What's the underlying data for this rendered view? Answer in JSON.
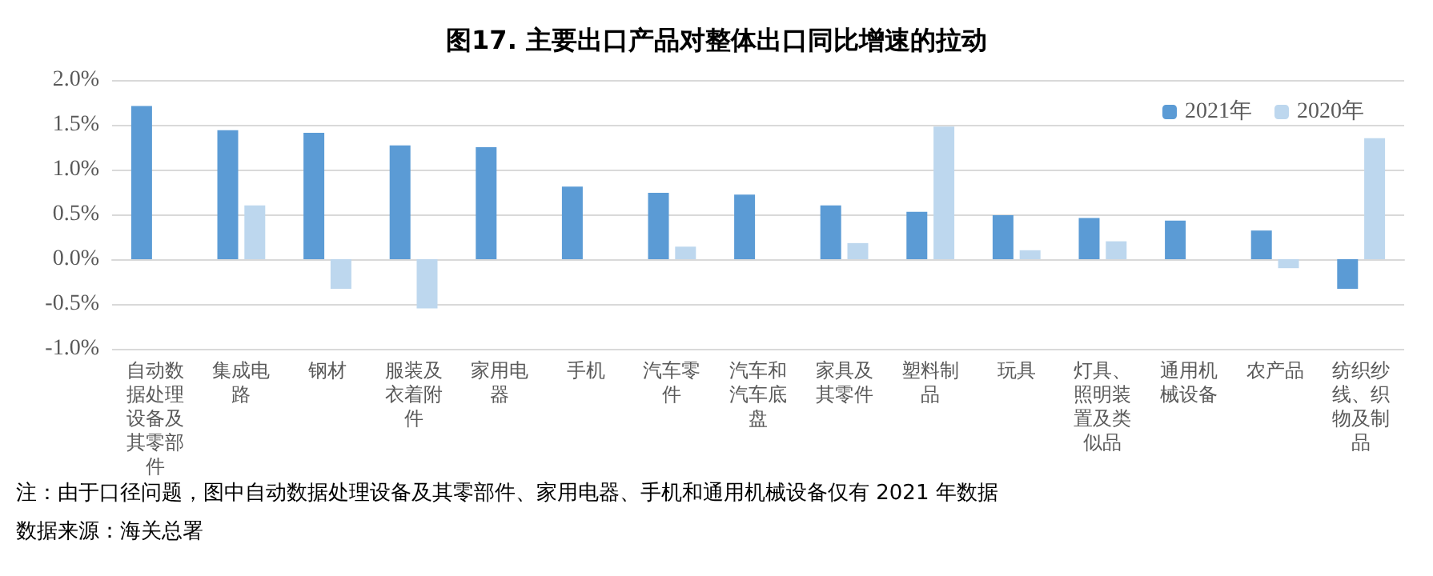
{
  "chart_data": {
    "type": "bar",
    "title": "图17. 主要出口产品对整体出口同比增速的拉动",
    "categories": [
      "自动数据处理设备及其零部件",
      "集成电路",
      "钢材",
      "服装及衣着附件",
      "家用电器",
      "手机",
      "汽车零件",
      "汽车和汽车底盘",
      "家具及其零件",
      "塑料制品",
      "玩具",
      "灯具、照明装置及类似品",
      "通用机械设备",
      "农产品",
      "纺织纱线、织物及制品"
    ],
    "series": [
      {
        "name": "2021年",
        "color": "#5b9bd5",
        "values": [
          1.71,
          1.44,
          1.41,
          1.27,
          1.25,
          0.81,
          0.74,
          0.72,
          0.6,
          0.53,
          0.49,
          0.46,
          0.43,
          0.32,
          -0.33
        ]
      },
      {
        "name": "2020年",
        "color": "#bdd7ee",
        "values": [
          null,
          0.6,
          -0.33,
          -0.55,
          null,
          null,
          0.14,
          null,
          0.18,
          1.48,
          0.1,
          0.2,
          null,
          -0.1,
          1.35
        ]
      }
    ],
    "ylim": [
      -1.0,
      2.0
    ],
    "yticks": [
      {
        "value": -1.0,
        "label": "-1.0%"
      },
      {
        "value": -0.5,
        "label": "-0.5%"
      },
      {
        "value": 0,
        "label": "0.0%"
      },
      {
        "value": 0.5,
        "label": "0.5%"
      },
      {
        "value": 1.0,
        "label": "1.0%"
      },
      {
        "value": 1.5,
        "label": "1.5%"
      },
      {
        "value": 2.0,
        "label": "2.0%"
      }
    ],
    "grid": "y",
    "legend": "top right",
    "annotations": [
      "注：由于口径问题，图中自动数据处理设备及其零部件、家用电器、手机和通用机械设备仅有 2021 年数据",
      "数据来源：海关总署"
    ]
  }
}
